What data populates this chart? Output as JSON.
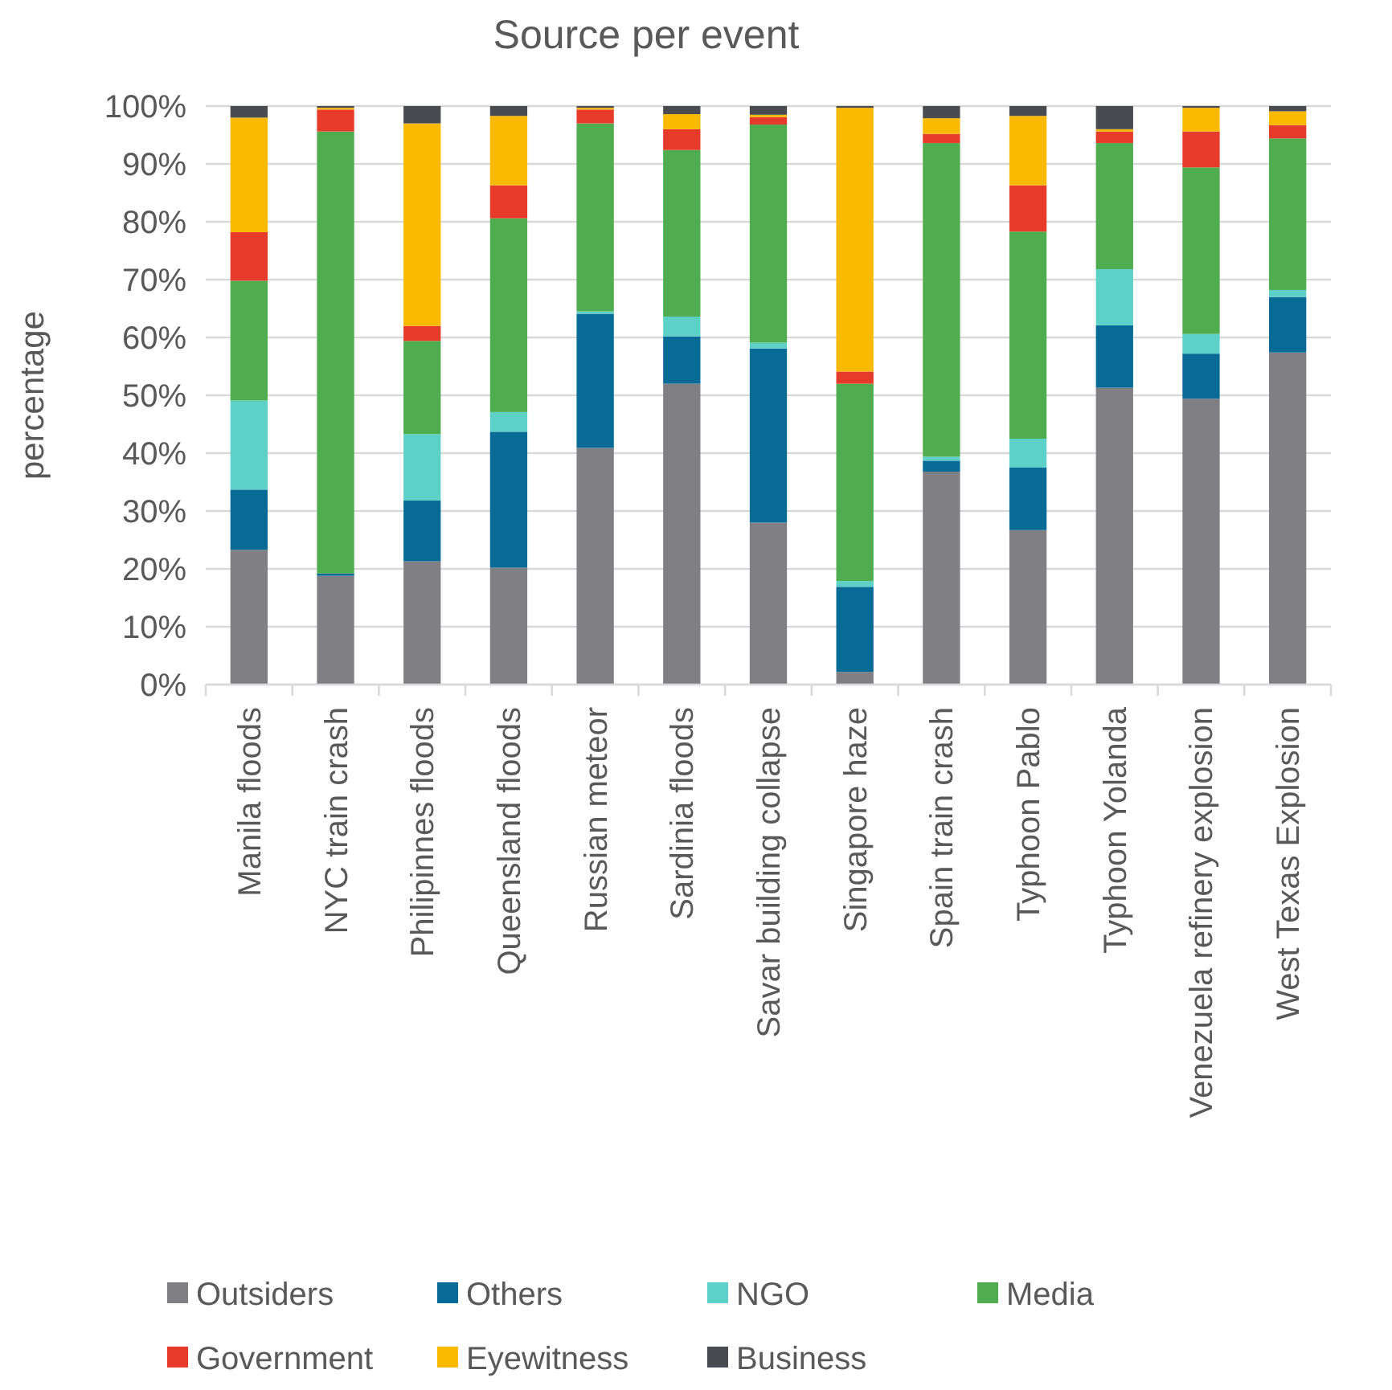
{
  "chart_data": {
    "type": "bar",
    "stacked": true,
    "title": "Source per event",
    "ylabel": "percentage",
    "categories": [
      "Manila floods",
      "NYC train crash",
      "Philipinnes floods",
      "Queensland floods",
      "Russian meteor",
      "Sardinia floods",
      "Savar building collapse",
      "Singapore haze",
      "Spain train crash",
      "Typhoon Pablo",
      "Typhoon Yolanda",
      "Venezuela refinery explosion",
      "West Texas Explosion"
    ],
    "series": [
      {
        "name": "Outsiders",
        "color": "#7f7f84",
        "values": [
          23.3,
          18.8,
          21.3,
          20.2,
          40.9,
          52.0,
          28.0,
          2.2,
          36.8,
          26.7,
          51.3,
          49.4,
          57.4
        ]
      },
      {
        "name": "Others",
        "color": "#076b96",
        "values": [
          10.4,
          0.4,
          10.5,
          23.5,
          23.2,
          8.2,
          30.1,
          14.7,
          1.9,
          10.8,
          10.8,
          7.8,
          9.6
        ]
      },
      {
        "name": "NGO",
        "color": "#5dd0c8",
        "values": [
          15.4,
          0,
          11.5,
          3.4,
          0.4,
          3.4,
          1.0,
          1.0,
          0.7,
          5.0,
          9.7,
          3.4,
          1.2
        ]
      },
      {
        "name": "Media",
        "color": "#4fac4f",
        "values": [
          20.7,
          76.4,
          16.1,
          33.5,
          32.5,
          28.8,
          37.7,
          34.1,
          54.2,
          35.8,
          21.8,
          28.8,
          26.2
        ]
      },
      {
        "name": "Government",
        "color": "#e63a2a",
        "values": [
          8.4,
          3.8,
          2.6,
          5.7,
          2.4,
          3.6,
          1.3,
          2.1,
          1.6,
          8.0,
          2.0,
          6.2,
          2.3
        ]
      },
      {
        "name": "Eyewitness",
        "color": "#fbb900",
        "values": [
          19.8,
          0.3,
          35.0,
          12.0,
          0.3,
          2.6,
          0.4,
          45.6,
          2.7,
          12.0,
          0.4,
          4.1,
          2.4
        ]
      },
      {
        "name": "Business",
        "color": "#4a4b50",
        "values": [
          2.0,
          0.3,
          3.0,
          1.7,
          0.3,
          1.4,
          1.5,
          0.3,
          2.1,
          1.7,
          4.0,
          0.3,
          0.9
        ]
      }
    ],
    "ylim": [
      0,
      100
    ],
    "yticks": [
      {
        "value": 0,
        "label": "0%"
      },
      {
        "value": 10,
        "label": "10%"
      },
      {
        "value": 20,
        "label": "20%"
      },
      {
        "value": 30,
        "label": "30%"
      },
      {
        "value": 40,
        "label": "40%"
      },
      {
        "value": 50,
        "label": "50%"
      },
      {
        "value": 60,
        "label": "60%"
      },
      {
        "value": 70,
        "label": "70%"
      },
      {
        "value": 80,
        "label": "80%"
      },
      {
        "value": 90,
        "label": "90%"
      },
      {
        "value": 100,
        "label": "100%"
      }
    ],
    "grid": "y",
    "legend": "bottom"
  }
}
